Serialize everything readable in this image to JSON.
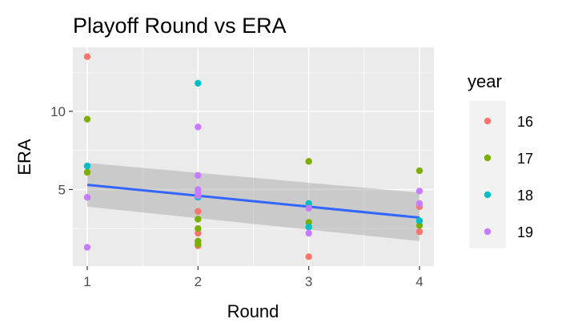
{
  "chart_data": {
    "type": "scatter",
    "title": "Playoff Round vs ERA",
    "xlabel": "Round",
    "ylabel": "ERA",
    "xlim": [
      0.87,
      4.13
    ],
    "ylim": [
      0.1,
      14.1
    ],
    "x_ticks": [
      1,
      2,
      3,
      4
    ],
    "x_tick_labels": [
      "1",
      "2",
      "3",
      "4"
    ],
    "y_ticks": [
      5,
      10
    ],
    "y_tick_labels": [
      "5",
      "10"
    ],
    "grid": true,
    "legend": {
      "title": "year",
      "placement": "right",
      "entries": [
        "16",
        "17",
        "18",
        "19"
      ]
    },
    "series": [
      {
        "name": "16",
        "color": "#F8766D",
        "points": [
          [
            1,
            13.5
          ],
          [
            2,
            2.2
          ],
          [
            2,
            1.4
          ],
          [
            2,
            3.6
          ],
          [
            3,
            0.7
          ],
          [
            4,
            2.3
          ],
          [
            4,
            3.9
          ]
        ]
      },
      {
        "name": "17",
        "color": "#7CAE00",
        "points": [
          [
            1,
            9.5
          ],
          [
            1,
            6.1
          ],
          [
            2,
            3.1
          ],
          [
            2,
            2.5
          ],
          [
            2,
            1.7
          ],
          [
            2,
            1.5
          ],
          [
            3,
            6.8
          ],
          [
            3,
            2.9
          ],
          [
            4,
            6.2
          ],
          [
            4,
            2.7
          ]
        ]
      },
      {
        "name": "18",
        "color": "#00BFC4",
        "points": [
          [
            1,
            6.5
          ],
          [
            2,
            11.8
          ],
          [
            2,
            4.5
          ],
          [
            3,
            4.1
          ],
          [
            3,
            2.6
          ],
          [
            4,
            3.0
          ]
        ]
      },
      {
        "name": "19",
        "color": "#C77CFF",
        "points": [
          [
            1,
            4.5
          ],
          [
            1,
            1.3
          ],
          [
            2,
            9.0
          ],
          [
            2,
            5.9
          ],
          [
            2,
            5.0
          ],
          [
            2,
            4.8
          ],
          [
            2,
            4.6
          ],
          [
            3,
            3.8
          ],
          [
            3,
            2.2
          ],
          [
            4,
            4.9
          ],
          [
            4,
            4.1
          ]
        ]
      }
    ],
    "trend": {
      "x": [
        1,
        4
      ],
      "y": [
        5.3,
        3.2
      ],
      "ci_lower": [
        3.9,
        1.7
      ],
      "ci_upper": [
        6.7,
        4.8
      ],
      "line_color": "#3366FF",
      "band_color": "#999999"
    },
    "panel_background": "#EBEBEB",
    "grid_color": "#FFFFFF"
  }
}
